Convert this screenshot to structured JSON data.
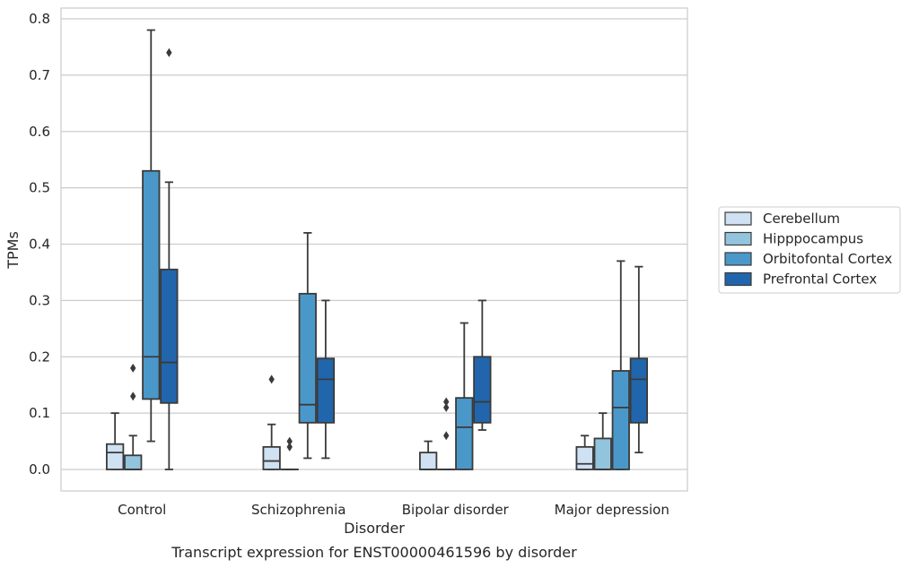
{
  "caption": "Transcript expression for ENST00000461596 by disorder",
  "chart_data": {
    "type": "box",
    "xlabel": "Disorder",
    "ylabel": "TPMs",
    "ylim": [
      -0.038,
      0.82
    ],
    "yticks": [
      "0.0",
      "0.1",
      "0.2",
      "0.3",
      "0.4",
      "0.5",
      "0.6",
      "0.7",
      "0.8"
    ],
    "ytick_values": [
      0,
      0.1,
      0.2,
      0.3,
      0.4,
      0.5,
      0.6,
      0.7,
      0.8
    ],
    "grid": true,
    "legend_position": "right",
    "categories": [
      "Control",
      "Schizophrenia",
      "Bipolar disorder",
      "Major depression"
    ],
    "series": [
      {
        "name": "Cerebellum",
        "color": "#cfe1f2",
        "boxes": [
          {
            "whisker_low": 0,
            "q1": 0,
            "median": 0.03,
            "q3": 0.045,
            "whisker_high": 0.1,
            "outliers": []
          },
          {
            "whisker_low": 0,
            "q1": 0,
            "median": 0.015,
            "q3": 0.04,
            "whisker_high": 0.08,
            "outliers": [
              0.16
            ]
          },
          {
            "whisker_low": 0,
            "q1": 0,
            "median": 0,
            "q3": 0.03,
            "whisker_high": 0.05,
            "outliers": []
          },
          {
            "whisker_low": 0,
            "q1": 0,
            "median": 0.01,
            "q3": 0.04,
            "whisker_high": 0.06,
            "outliers": []
          }
        ]
      },
      {
        "name": "Hipppocampus",
        "color": "#93c4de",
        "boxes": [
          {
            "whisker_low": 0,
            "q1": 0,
            "median": 0,
            "q3": 0.025,
            "whisker_high": 0.06,
            "outliers": [
              0.13,
              0.18
            ]
          },
          {
            "whisker_low": 0,
            "q1": 0,
            "median": 0,
            "q3": 0,
            "whisker_high": 0,
            "outliers": [
              0.04,
              0.05
            ]
          },
          {
            "whisker_low": 0,
            "q1": 0,
            "median": 0,
            "q3": 0,
            "whisker_high": 0,
            "outliers": [
              0.06,
              0.11,
              0.12
            ]
          },
          {
            "whisker_low": 0,
            "q1": 0,
            "median": 0,
            "q3": 0.055,
            "whisker_high": 0.1,
            "outliers": []
          }
        ]
      },
      {
        "name": "Orbitofontal Cortex",
        "color": "#4a98c9",
        "boxes": [
          {
            "whisker_low": 0.05,
            "q1": 0.125,
            "median": 0.2,
            "q3": 0.53,
            "whisker_high": 0.78,
            "outliers": []
          },
          {
            "whisker_low": 0.02,
            "q1": 0.083,
            "median": 0.115,
            "q3": 0.312,
            "whisker_high": 0.42,
            "outliers": []
          },
          {
            "whisker_low": 0,
            "q1": 0,
            "median": 0.075,
            "q3": 0.127,
            "whisker_high": 0.26,
            "outliers": []
          },
          {
            "whisker_low": 0,
            "q1": 0,
            "median": 0.11,
            "q3": 0.175,
            "whisker_high": 0.37,
            "outliers": []
          }
        ]
      },
      {
        "name": "Prefrontal Cortex",
        "color": "#2166ac",
        "boxes": [
          {
            "whisker_low": 0,
            "q1": 0.118,
            "median": 0.19,
            "q3": 0.355,
            "whisker_high": 0.51,
            "outliers": [
              0.74
            ]
          },
          {
            "whisker_low": 0.02,
            "q1": 0.083,
            "median": 0.16,
            "q3": 0.197,
            "whisker_high": 0.3,
            "outliers": []
          },
          {
            "whisker_low": 0.07,
            "q1": 0.083,
            "median": 0.12,
            "q3": 0.2,
            "whisker_high": 0.3,
            "outliers": []
          },
          {
            "whisker_low": 0.03,
            "q1": 0.083,
            "median": 0.16,
            "q3": 0.197,
            "whisker_high": 0.36,
            "outliers": []
          }
        ]
      }
    ]
  }
}
